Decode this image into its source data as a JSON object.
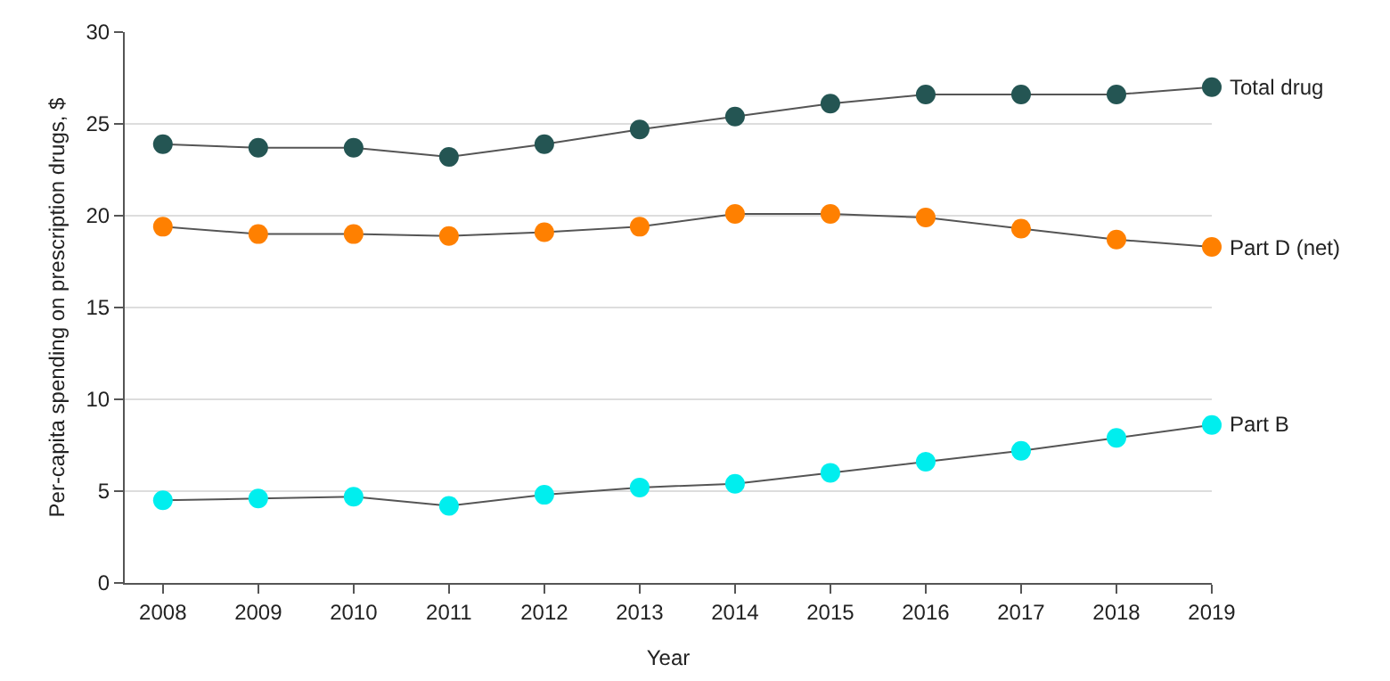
{
  "chart_data": {
    "type": "line",
    "xlabel": "Year",
    "ylabel": "Per-capita spending on prescription drugs, $",
    "x": [
      2008,
      2009,
      2010,
      2011,
      2012,
      2013,
      2014,
      2015,
      2016,
      2017,
      2018,
      2019
    ],
    "series": [
      {
        "name": "Total drug",
        "color": "#245553",
        "values": [
          23.9,
          23.7,
          23.7,
          23.2,
          23.9,
          24.7,
          25.4,
          26.1,
          26.6,
          26.6,
          26.6,
          27.0
        ]
      },
      {
        "name": "Part D (net)",
        "color": "#ff8000",
        "values": [
          19.4,
          19.0,
          19.0,
          18.9,
          19.1,
          19.4,
          20.1,
          20.1,
          19.9,
          19.3,
          18.7,
          18.3
        ]
      },
      {
        "name": "Part B",
        "color": "#00eeee",
        "values": [
          4.5,
          4.6,
          4.7,
          4.2,
          4.8,
          5.2,
          5.4,
          6.0,
          6.6,
          7.2,
          7.9,
          8.6
        ]
      }
    ],
    "xlim": [
      2007.6,
      2019
    ],
    "xticks": [
      2008,
      2009,
      2010,
      2011,
      2012,
      2013,
      2014,
      2015,
      2016,
      2017,
      2018,
      2019
    ],
    "ylim": [
      0,
      30
    ],
    "yticks": [
      0,
      5,
      10,
      15,
      20,
      25,
      30
    ],
    "grid": "y",
    "legend": false,
    "marker": "circle",
    "line_style": "solid"
  }
}
